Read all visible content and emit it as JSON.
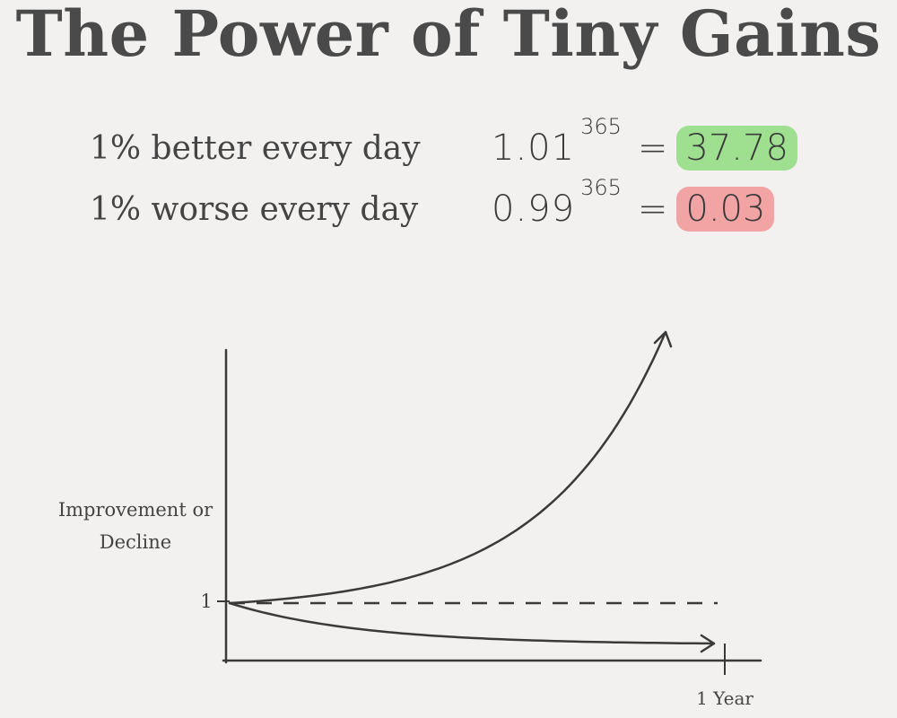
{
  "title": "The Power of Tiny Gains",
  "equations": [
    {
      "label": "1% better every day",
      "base": "1.01",
      "exponent": "365",
      "sign": "=",
      "result": "37.78",
      "highlight": "#9ee08f"
    },
    {
      "label": "1% worse every day",
      "base": "0.99",
      "exponent": "365",
      "sign": "=",
      "result": "0.03",
      "highlight": "#f2a3a3"
    }
  ],
  "chart_data": {
    "type": "line",
    "ylabel": "Improvement or Decline",
    "xlabel": "1 Year",
    "y_tick_label": "1",
    "x_tick_label": "1 Year",
    "baseline": 1,
    "series": [
      {
        "rate": 1.01
      },
      {
        "rate": 0.99
      }
    ],
    "days": 365,
    "baseline_style": "dashed",
    "line_color": "#3a3a3a"
  }
}
